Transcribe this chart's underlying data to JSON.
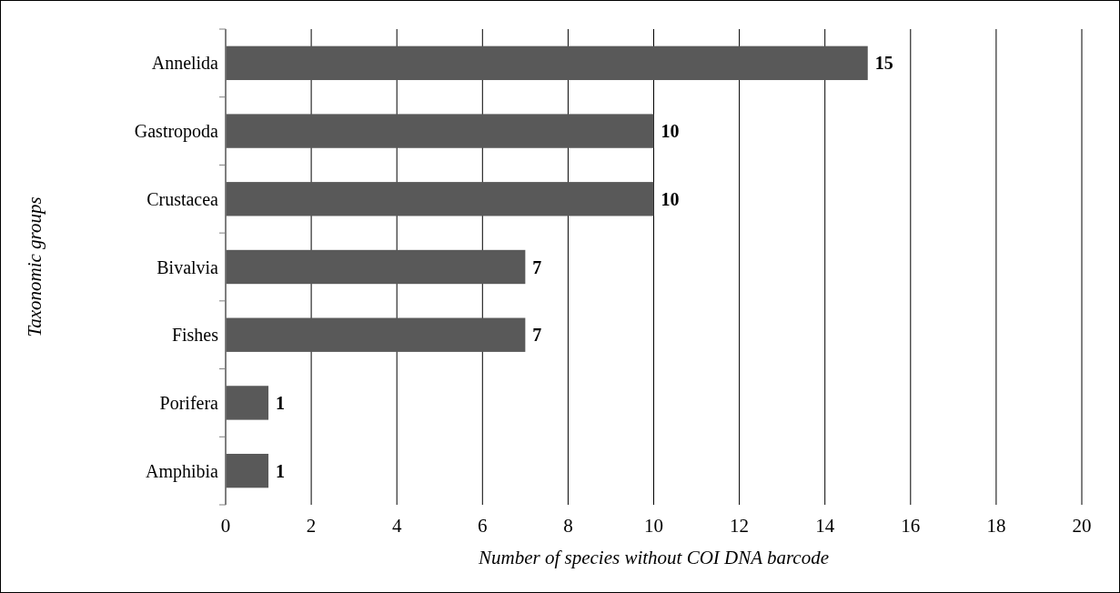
{
  "chart_data": {
    "type": "bar",
    "orientation": "horizontal",
    "categories": [
      "Annelida",
      "Gastropoda",
      "Crustacea",
      "Bivalvia",
      "Fishes",
      "Porifera",
      "Amphibia"
    ],
    "values": [
      15,
      10,
      10,
      7,
      7,
      1,
      1
    ],
    "color": "#595959",
    "xlim": [
      0,
      20
    ],
    "xticks": [
      0,
      2,
      4,
      6,
      8,
      10,
      12,
      14,
      16,
      18,
      20
    ],
    "xlabel": "Number of species without COI DNA barcode",
    "ylabel": "Taxonomic groups",
    "data_labels": true,
    "grid": "x"
  }
}
